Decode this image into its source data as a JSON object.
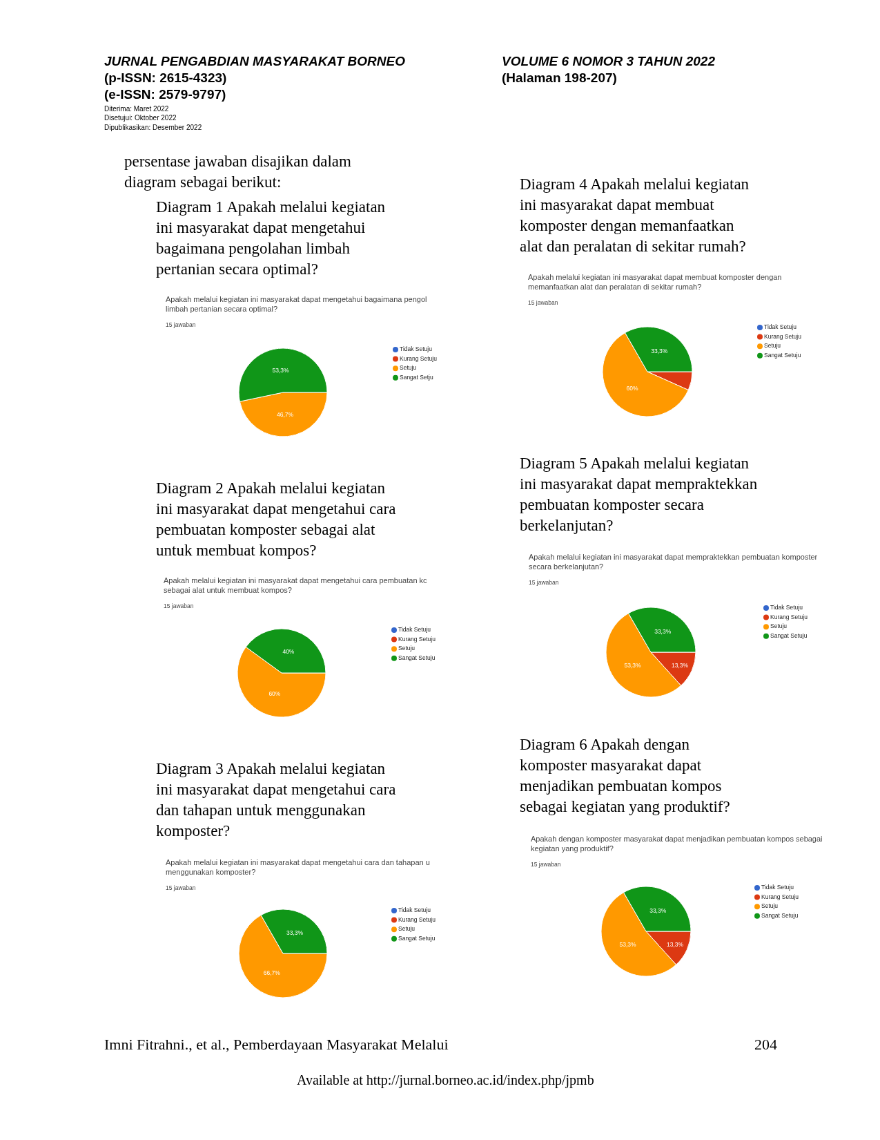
{
  "chart_data": [
    {
      "type": "other",
      "annotations": [
        "JURNAL PENGABDIAN MASYARAKAT BORNEO",
        "(p-ISSN: 2615-4323)",
        "(e-ISSN: 2579-9797)",
        "Diterima: Maret 2022",
        "Disetujui: Oktober 2022",
        "Dipublikasikan: Desember 2022",
        "VOLUME 6 NOMOR 3 TAHUN 2022",
        "(Halaman 198-207)",
        "persentase jawaban disajikan dalam\ndiagram sebagai berikut:",
        "Imni Fitrahni., et al., Pemberdayaan Masyarakat Melalui",
        "204",
        "Available at http://jurnal.borneo.ac.id/index.php/jpmb"
      ]
    },
    {
      "type": "pie",
      "title": "Apakah melalui kegiatan ini masyarakat dapat mengetahui bagaimana pengol\nlimbah pertanian secara optimal?",
      "subtitle": "15 jawaban",
      "annotations": [
        "Diagram 1 Apakah melalui kegiatan\nini masyarakat dapat mengetahui\nbagaimana pengolahan limbah\npertanian secara optimal?"
      ],
      "categories": [
        "Tidak Setuju",
        "Kurang Setuju",
        "Setuju",
        "Sangat Setju"
      ],
      "values": [
        0,
        0,
        46.7,
        53.3
      ],
      "colors": [
        "#3366cc",
        "#dc3912",
        "#ff9900",
        "#109618"
      ],
      "value_labels": [
        null,
        null,
        "46,7%",
        "53,3%"
      ],
      "legend": "right"
    },
    {
      "type": "pie",
      "title": "Apakah melalui kegiatan ini masyarakat dapat mengetahui cara pembuatan kc\nsebagai alat untuk membuat kompos?",
      "subtitle": "15 jawaban",
      "annotations": [
        "Diagram 2 Apakah melalui kegiatan\nini masyarakat dapat mengetahui cara\npembuatan komposter sebagai alat\nuntuk membuat kompos?"
      ],
      "categories": [
        "Tidak Setuju",
        "Kurang Setuju",
        "Setuju",
        "Sangat Setuju"
      ],
      "values": [
        0,
        0,
        60,
        40
      ],
      "colors": [
        "#3366cc",
        "#dc3912",
        "#ff9900",
        "#109618"
      ],
      "value_labels": [
        null,
        null,
        "60%",
        "40%"
      ],
      "legend": "right"
    },
    {
      "type": "pie",
      "title": "Apakah melalui kegiatan ini masyarakat dapat mengetahui cara dan tahapan u\nmenggunakan komposter?",
      "subtitle": "15 jawaban",
      "annotations": [
        "Diagram 3 Apakah melalui kegiatan\nini masyarakat dapat mengetahui cara\ndan tahapan untuk menggunakan\nkomposter?"
      ],
      "categories": [
        "Tidak Setuju",
        "Kurang Setuju",
        "Setuju",
        "Sangat Setuju"
      ],
      "values": [
        0,
        0,
        66.7,
        33.3
      ],
      "colors": [
        "#3366cc",
        "#dc3912",
        "#ff9900",
        "#109618"
      ],
      "value_labels": [
        null,
        null,
        "66,7%",
        "33,3%"
      ],
      "legend": "right"
    },
    {
      "type": "pie",
      "title": "Apakah melalui kegiatan ini masyarakat dapat membuat komposter dengan\nmemanfaatkan alat dan peralatan di sekitar rumah?",
      "subtitle": "15 jawaban",
      "annotations": [
        "Diagram 4 Apakah melalui kegiatan\nini masyarakat dapat membuat\nkomposter dengan memanfaatkan\nalat dan peralatan di sekitar rumah?"
      ],
      "categories": [
        "Tidak Setuju",
        "Kurang Setuju",
        "Setuju",
        "Sangat Setuju"
      ],
      "values": [
        0,
        6.7,
        60,
        33.3
      ],
      "colors": [
        "#3366cc",
        "#dc3912",
        "#ff9900",
        "#109618"
      ],
      "value_labels": [
        null,
        null,
        "60%",
        "33,3%"
      ],
      "legend": "right"
    },
    {
      "type": "pie",
      "title": "Apakah melalui kegiatan ini masyarakat dapat mempraktekkan pembuatan komposter\nsecara berkelanjutan?",
      "subtitle": "15 jawaban",
      "annotations": [
        "Diagram 5 Apakah melalui kegiatan\nini masyarakat dapat mempraktekkan\npembuatan komposter secara\nberkelanjutan?"
      ],
      "categories": [
        "Tidak Setuju",
        "Kurang Setuju",
        "Setuju",
        "Sangat Setuju"
      ],
      "values": [
        0,
        13.3,
        53.3,
        33.3
      ],
      "colors": [
        "#3366cc",
        "#dc3912",
        "#ff9900",
        "#109618"
      ],
      "value_labels": [
        null,
        "13,3%",
        "53,3%",
        "33,3%"
      ],
      "legend": "right"
    },
    {
      "type": "pie",
      "title": "Apakah dengan komposter masyarakat dapat menjadikan pembuatan kompos sebagai\nkegiatan yang produktif?",
      "subtitle": "15 jawaban",
      "annotations": [
        "Diagram 6 Apakah dengan\nkomposter masyarakat dapat\nmenjadikan pembuatan kompos\nsebagai kegiatan yang produktif?"
      ],
      "categories": [
        "Tidak Setuju",
        "Kurang Setuju",
        "Setuju",
        "Sangat Setuju"
      ],
      "values": [
        0,
        13.3,
        53.3,
        33.3
      ],
      "colors": [
        "#3366cc",
        "#dc3912",
        "#ff9900",
        "#109618"
      ],
      "value_labels": [
        null,
        "13,3%",
        "53,3%",
        "33,3%"
      ],
      "legend": "right"
    }
  ]
}
